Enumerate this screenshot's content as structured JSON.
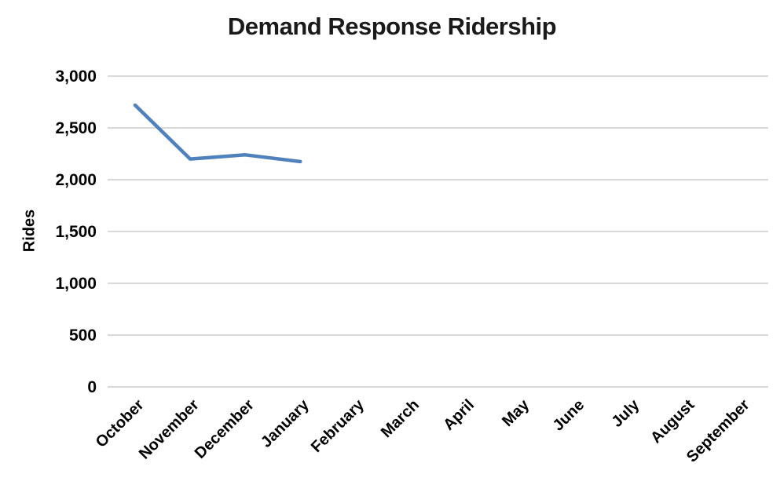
{
  "chart_data": {
    "type": "line",
    "title": "Demand Response Ridership",
    "xlabel": "",
    "ylabel": "Rides",
    "categories": [
      "October",
      "November",
      "December",
      "January",
      "February",
      "March",
      "April",
      "May",
      "June",
      "July",
      "August",
      "September"
    ],
    "series": [
      {
        "name": "Demand Response Ridership",
        "color": "#4F81BD",
        "values": [
          2720,
          2200,
          2240,
          2175,
          null,
          null,
          null,
          null,
          null,
          null,
          null,
          null
        ]
      }
    ],
    "ylim": [
      0,
      3000
    ],
    "yticks": [
      0,
      500,
      1000,
      1500,
      2000,
      2500,
      3000
    ],
    "ytick_labels": [
      "0",
      "500",
      "1,000",
      "1,500",
      "2,000",
      "2,500",
      "3,000"
    ],
    "grid": true,
    "gridline_color": "#D9D9D9",
    "axis_text_color": "#000000",
    "title_color": "#1a1a1a",
    "background": "#ffffff",
    "legend": "none",
    "x_label_rotation_deg": -45
  }
}
